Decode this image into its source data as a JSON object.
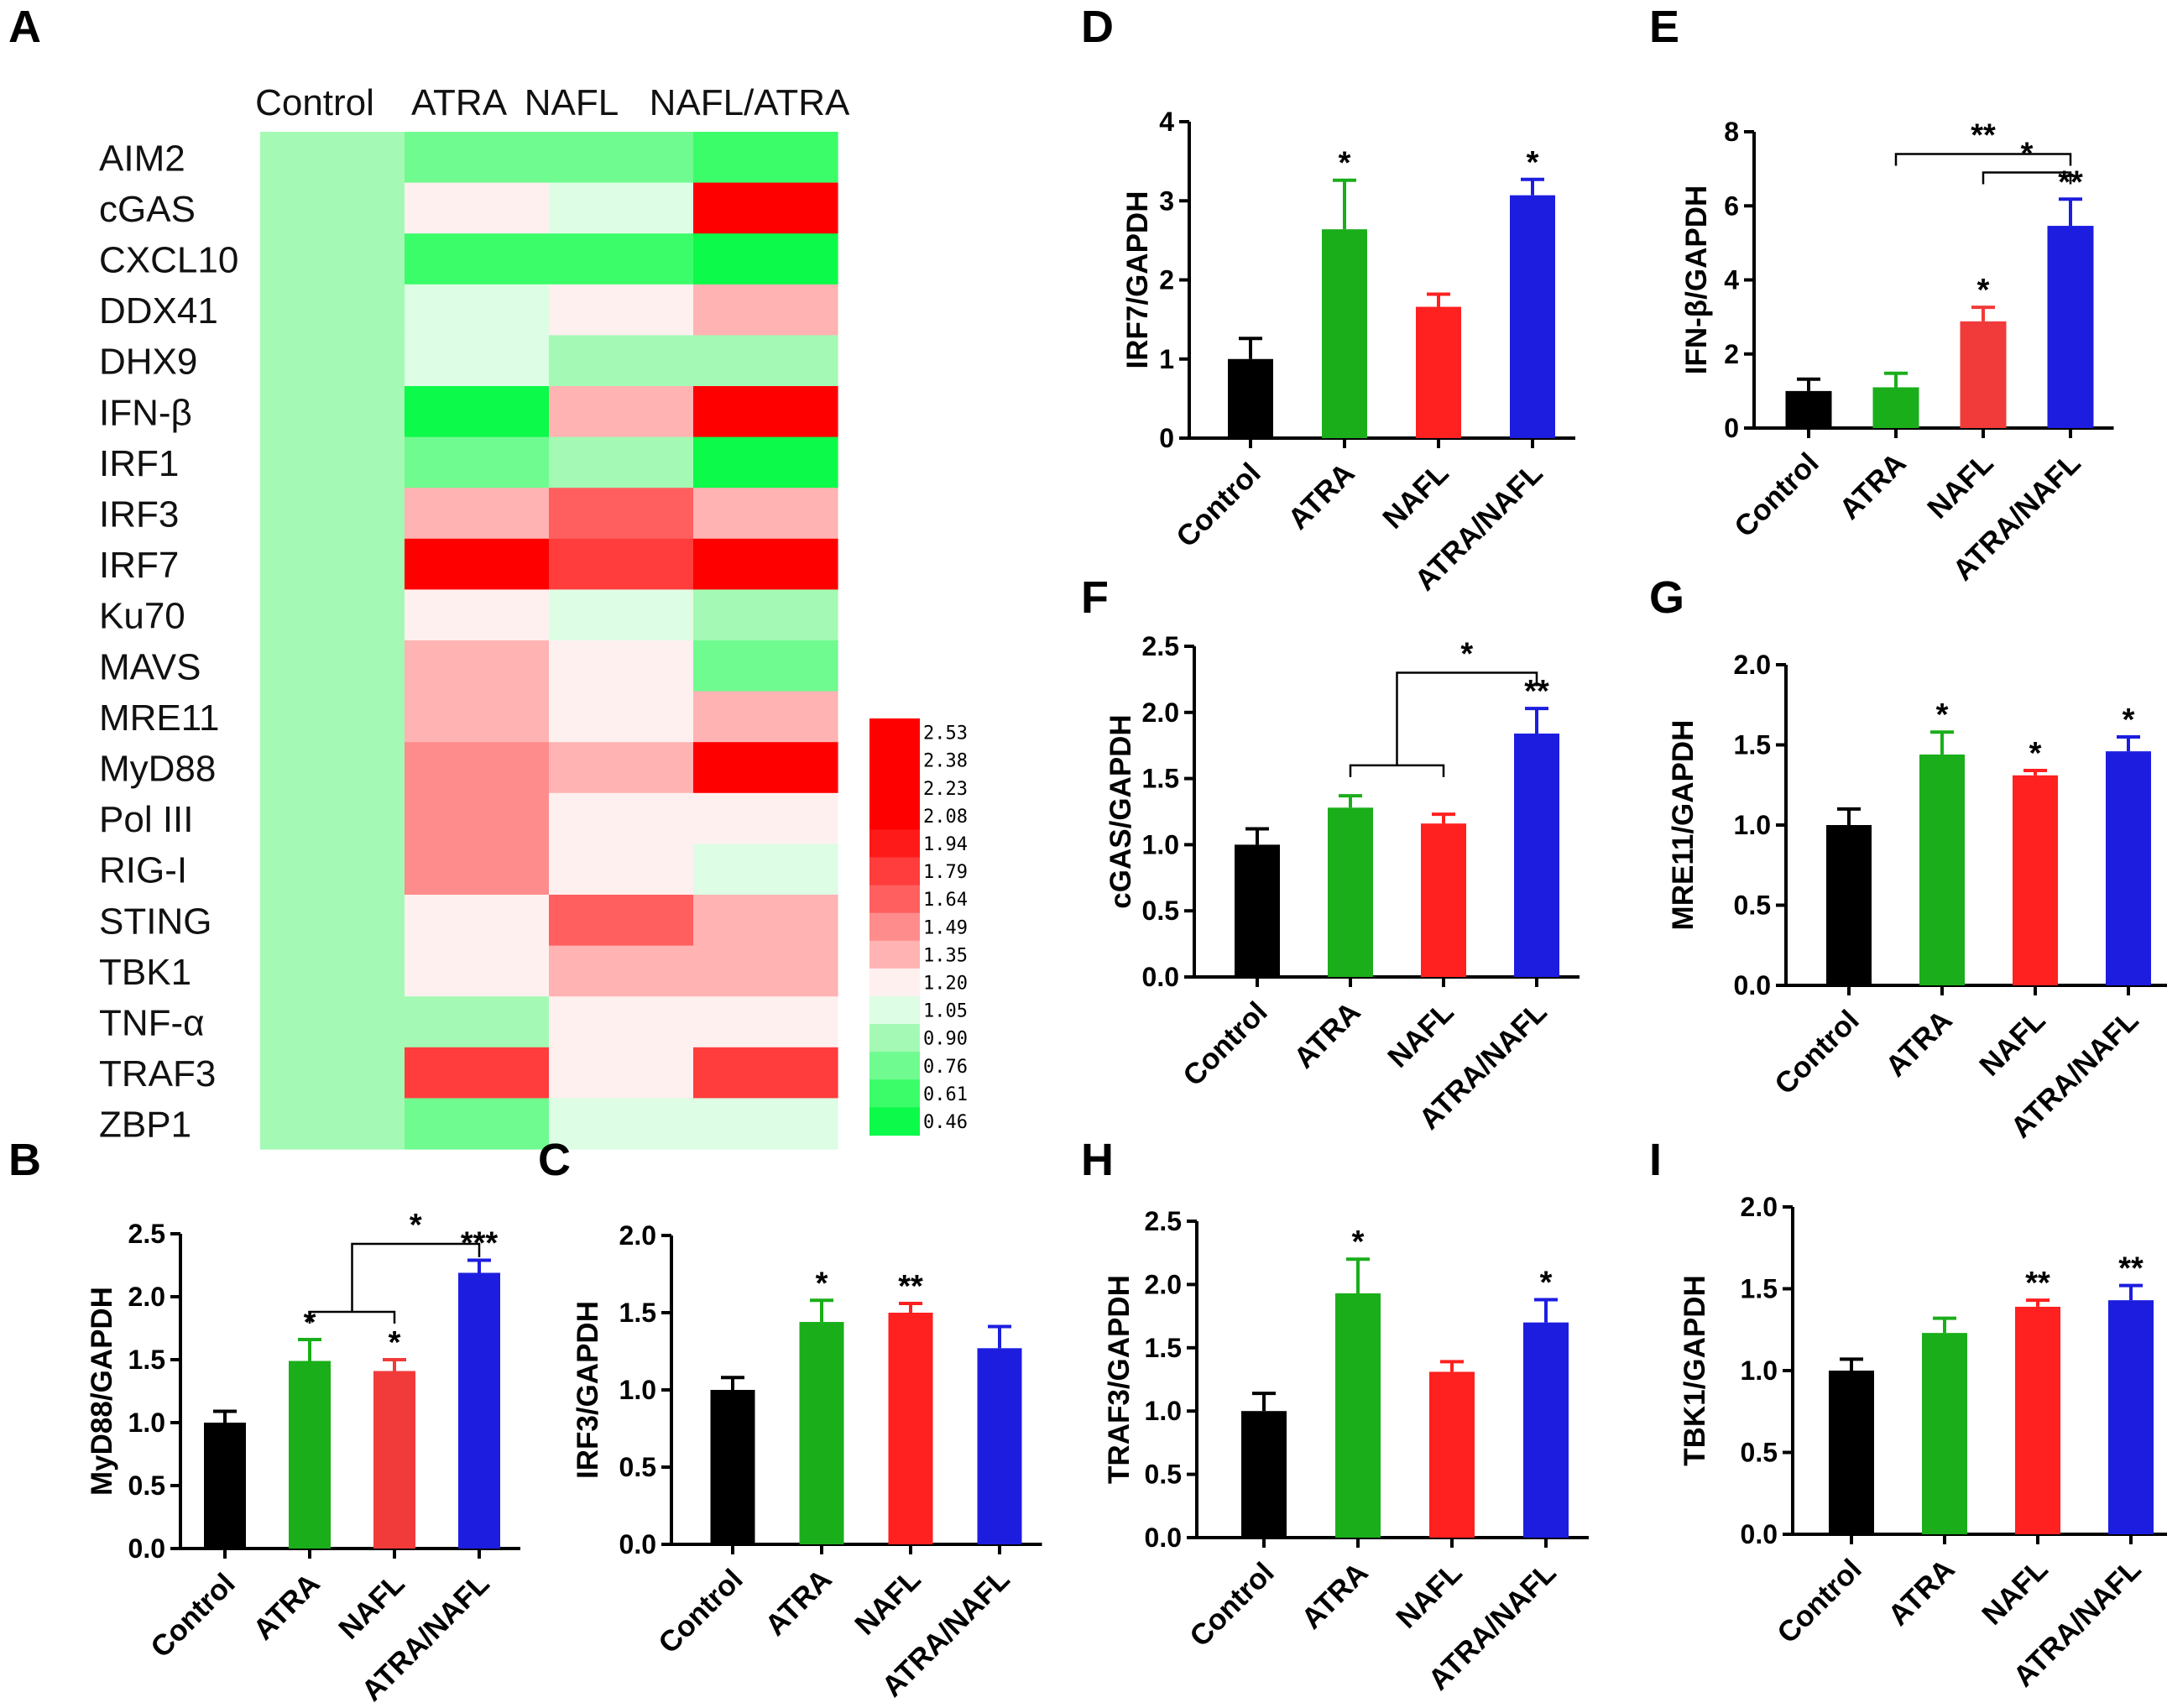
{
  "colors": {
    "Control": "#000000",
    "ATRA": "#1aae1a",
    "NAFL": "#f13a3a",
    "NAFL_I": "#ff2020",
    "ATRA/NAFL": "#1d1de0"
  },
  "chart_data": [
    {
      "id": "A",
      "type": "heatmap",
      "panel_label": "A",
      "columns": [
        "Control",
        "ATRA",
        "NAFL",
        "NAFL/ATRA"
      ],
      "rows": [
        "AIM2",
        "cGAS",
        "CXCL10",
        "DDX41",
        "DHX9",
        "IFN-β",
        "IRF1",
        "IRF3",
        "IRF7",
        "Ku70",
        "MAVS",
        "MRE11",
        "MyD88",
        "Pol III",
        "RIG-I",
        "STING",
        "TBK1",
        "TNF-α",
        "TRAF3",
        "ZBP1"
      ],
      "values": [
        [
          1.0,
          0.76,
          0.76,
          0.61
        ],
        [
          1.0,
          1.2,
          1.05,
          2.53
        ],
        [
          1.0,
          0.61,
          0.61,
          0.46
        ],
        [
          1.0,
          1.05,
          1.2,
          1.35
        ],
        [
          1.0,
          1.05,
          0.9,
          0.9
        ],
        [
          1.0,
          0.46,
          1.35,
          2.53
        ],
        [
          1.0,
          0.76,
          0.9,
          0.46
        ],
        [
          1.0,
          1.35,
          1.64,
          1.35
        ],
        [
          1.0,
          2.53,
          1.79,
          2.53
        ],
        [
          1.0,
          1.2,
          1.05,
          0.9
        ],
        [
          1.0,
          1.35,
          1.2,
          0.76
        ],
        [
          1.0,
          1.35,
          1.2,
          1.35
        ],
        [
          1.0,
          1.49,
          1.35,
          2.53
        ],
        [
          1.0,
          1.49,
          1.2,
          1.2
        ],
        [
          1.0,
          1.49,
          1.2,
          1.05
        ],
        [
          1.0,
          1.2,
          1.64,
          1.35
        ],
        [
          1.0,
          1.2,
          1.35,
          1.35
        ],
        [
          1.0,
          0.9,
          1.2,
          1.2
        ],
        [
          1.0,
          1.79,
          1.2,
          1.79
        ],
        [
          1.0,
          0.76,
          1.05,
          1.05
        ]
      ],
      "legend_ticks": [
        "2.53",
        "2.38",
        "2.23",
        "2.08",
        "1.94",
        "1.79",
        "1.64",
        "1.49",
        "1.35",
        "1.20",
        "1.05",
        "0.90",
        "0.76",
        "0.61",
        "0.46"
      ],
      "legend_colors": [
        "#ff0000",
        "#ff0000",
        "#ff0000",
        "#ff0000",
        "#ff1a1a",
        "#ff3d3d",
        "#ff5f5f",
        "#ff8c8c",
        "#ffb3b3",
        "#fff0f0",
        "#ddfde4",
        "#a4fab4",
        "#70fb90",
        "#3bfd6a",
        "#0cfa49"
      ]
    },
    {
      "id": "B",
      "type": "bar",
      "panel_label": "B",
      "ylabel": "MyD88/GAPDH",
      "categories": [
        "Control",
        "ATRA",
        "NAFL",
        "ATRA/NAFL"
      ],
      "values": [
        1.0,
        1.49,
        1.41,
        2.19
      ],
      "errors": [
        0.09,
        0.17,
        0.09,
        0.1
      ],
      "ylim": [
        0,
        2.5
      ],
      "yticks": [
        "0.0",
        "0.5",
        "1.0",
        "1.5",
        "2.0",
        "2.5"
      ],
      "significance": [
        "",
        "*",
        "*",
        "***"
      ],
      "brackets": [
        {
          "label": "*"
        }
      ]
    },
    {
      "id": "C",
      "type": "bar",
      "panel_label": "C",
      "ylabel": "IRF3/GAPDH",
      "categories": [
        "Control",
        "ATRA",
        "NAFL",
        "ATRA/NAFL"
      ],
      "values": [
        1.0,
        1.44,
        1.5,
        1.27
      ],
      "errors": [
        0.08,
        0.14,
        0.06,
        0.14
      ],
      "ylim": [
        0,
        2.0
      ],
      "yticks": [
        "0.0",
        "0.5",
        "1.0",
        "1.5",
        "2.0"
      ],
      "significance": [
        "",
        "*",
        "**",
        ""
      ],
      "brackets": []
    },
    {
      "id": "D",
      "type": "bar",
      "panel_label": "D",
      "ylabel": "IRF7/GAPDH",
      "categories": [
        "Control",
        "ATRA",
        "NAFL",
        "ATRA/NAFL"
      ],
      "values": [
        1.0,
        2.64,
        1.66,
        3.07
      ],
      "errors": [
        0.26,
        0.62,
        0.16,
        0.2
      ],
      "ylim": [
        0,
        4
      ],
      "yticks": [
        "0",
        "1",
        "2",
        "3",
        "4"
      ],
      "significance": [
        "",
        "*",
        "",
        "*"
      ],
      "brackets": []
    },
    {
      "id": "E",
      "type": "bar",
      "panel_label": "E",
      "ylabel": "IFN-β/GAPDH",
      "categories": [
        "Control",
        "ATRA",
        "NAFL",
        "ATRA/NAFL"
      ],
      "values": [
        1.0,
        1.1,
        2.88,
        5.46
      ],
      "errors": [
        0.32,
        0.38,
        0.38,
        0.72
      ],
      "ylim": [
        0,
        8
      ],
      "yticks": [
        "0",
        "2",
        "4",
        "6",
        "8"
      ],
      "significance": [
        "",
        "",
        "*",
        "**"
      ],
      "brackets": [
        {
          "label": "**"
        },
        {
          "label": "*"
        }
      ]
    },
    {
      "id": "F",
      "type": "bar",
      "panel_label": "F",
      "ylabel": "cGAS/GAPDH",
      "categories": [
        "Control",
        "ATRA",
        "NAFL",
        "ATRA/NAFL"
      ],
      "values": [
        1.0,
        1.28,
        1.16,
        1.84
      ],
      "errors": [
        0.12,
        0.09,
        0.07,
        0.19
      ],
      "ylim": [
        0,
        2.5
      ],
      "yticks": [
        "0.0",
        "0.5",
        "1.0",
        "1.5",
        "2.0",
        "2.5"
      ],
      "significance": [
        "",
        "",
        "",
        "**"
      ],
      "brackets": [
        {
          "label": "*"
        }
      ]
    },
    {
      "id": "G",
      "type": "bar",
      "panel_label": "G",
      "ylabel": "MRE11/GAPDH",
      "categories": [
        "Control",
        "ATRA",
        "NAFL",
        "ATRA/NAFL"
      ],
      "values": [
        1.0,
        1.44,
        1.31,
        1.46
      ],
      "errors": [
        0.1,
        0.14,
        0.03,
        0.09
      ],
      "ylim": [
        0,
        2.0
      ],
      "yticks": [
        "0.0",
        "0.5",
        "1.0",
        "1.5",
        "2.0"
      ],
      "significance": [
        "",
        "*",
        "*",
        "*"
      ],
      "brackets": []
    },
    {
      "id": "H",
      "type": "bar",
      "panel_label": "H",
      "ylabel": "TRAF3/GAPDH",
      "categories": [
        "Control",
        "ATRA",
        "NAFL",
        "ATRA/NAFL"
      ],
      "values": [
        1.0,
        1.93,
        1.31,
        1.7
      ],
      "errors": [
        0.14,
        0.27,
        0.08,
        0.18
      ],
      "ylim": [
        0,
        2.5
      ],
      "yticks": [
        "0.0",
        "0.5",
        "1.0",
        "1.5",
        "2.0",
        "2.5"
      ],
      "significance": [
        "",
        "*",
        "",
        "*"
      ],
      "brackets": []
    },
    {
      "id": "I",
      "type": "bar",
      "panel_label": "I",
      "ylabel": "TBK1/GAPDH",
      "categories": [
        "Control",
        "ATRA",
        "NAFL",
        "ATRA/NAFL"
      ],
      "values": [
        1.0,
        1.23,
        1.39,
        1.43
      ],
      "errors": [
        0.07,
        0.09,
        0.04,
        0.09
      ],
      "ylim": [
        0,
        2.0
      ],
      "yticks": [
        "0.0",
        "0.5",
        "1.0",
        "1.5",
        "2.0"
      ],
      "significance": [
        "",
        "",
        "**",
        "**"
      ],
      "brackets": []
    }
  ]
}
